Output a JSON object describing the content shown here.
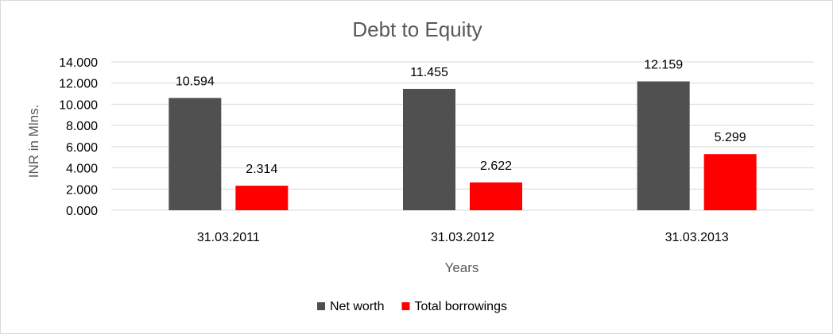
{
  "chart_data": {
    "type": "bar",
    "title": "Debt to Equity",
    "xlabel": "Years",
    "ylabel": "INR in Mlns.",
    "categories": [
      "31.03.2011",
      "31.03.2012",
      "31.03.2013"
    ],
    "series": [
      {
        "name": "Net worth",
        "values": [
          10.594,
          11.455,
          12.159
        ],
        "labels": [
          "10.594",
          "11.455",
          "12.159"
        ],
        "color": "#505050"
      },
      {
        "name": "Total borrowings",
        "values": [
          2.314,
          2.622,
          5.299
        ],
        "labels": [
          "2.314",
          "2.622",
          "5.299"
        ],
        "color": "#ff0000"
      }
    ],
    "ylim": [
      0,
      14
    ],
    "yticks": [
      0,
      2,
      4,
      6,
      8,
      10,
      12,
      14
    ],
    "ytick_labels": [
      "0.000",
      "2.000",
      "4.000",
      "6.000",
      "8.000",
      "10.000",
      "12.000",
      "14.000"
    ],
    "grid": true,
    "gridline_color": "#d9d9d9",
    "legend_position": "bottom"
  }
}
